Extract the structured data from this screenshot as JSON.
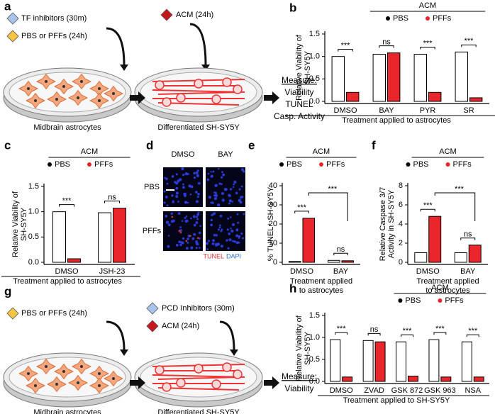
{
  "schematic_a": {
    "panel": "a",
    "input1": "TF inhibitors (30m)",
    "input2": "PBS or PFFs (24h)",
    "input3": "ACM (24h)",
    "dish1": "Midbrain astrocytes",
    "dish2": "Differentiated SH-SY5Y",
    "measure_title": "Measure:",
    "measures": [
      "Viability",
      "TUNEL",
      "Casp. Activity"
    ]
  },
  "image_d": {
    "panel": "d",
    "columns": [
      "DMSO",
      "BAY"
    ],
    "rows": [
      "PBS",
      "PFFs"
    ],
    "stain1": "TUNEL",
    "stain2": "DAPI"
  },
  "schematic_g": {
    "panel": "g",
    "input1": "PBS or PFFs (24h)",
    "input2": "PCD Inhibitors (30m)",
    "input3": "ACM (24h)",
    "dish1": "Midbrain astrocytes",
    "dish2": "Differentiated SH-SY5Y",
    "measure_title": "Measure:",
    "measures": [
      "Viability"
    ]
  },
  "charts": [
    {
      "type": "bar",
      "panel": "b",
      "group_label": "ACM",
      "ylabel": [
        "Relative Viability of",
        "SH-SY5Y"
      ],
      "xlabel": [
        "Treatment applied to astrocytes"
      ],
      "categories": [
        "DMSO",
        "BAY",
        "PYR",
        "SR"
      ],
      "series": [
        {
          "name": "PBS",
          "color": "#000000",
          "fill": "#ffffff",
          "values": [
            1.0,
            1.05,
            1.05,
            1.1
          ]
        },
        {
          "name": "PFFs",
          "color": "#e8262b",
          "fill": "#e8262b",
          "values": [
            0.2,
            1.08,
            0.2,
            0.08
          ]
        }
      ],
      "significance": [
        "***",
        "ns",
        "***",
        "***"
      ],
      "ylim": [
        0,
        1.5
      ],
      "yticks": [
        {
          "value": 0,
          "label": "0.0"
        },
        {
          "value": 0.5,
          "label": "0.5"
        },
        {
          "value": 1,
          "label": "1.0"
        },
        {
          "value": 1.5,
          "label": "1.5"
        }
      ]
    },
    {
      "type": "bar",
      "panel": "c",
      "group_label": "ACM",
      "ylabel": [
        "Relative Viability of",
        "SH-SY5Y"
      ],
      "xlabel": [
        "Treatment applied to astrocytes"
      ],
      "categories": [
        "DMSO",
        "JSH-23"
      ],
      "series": [
        {
          "name": "PBS",
          "color": "#000000",
          "fill": "#ffffff",
          "values": [
            1.0,
            0.98
          ]
        },
        {
          "name": "PFFs",
          "color": "#e8262b",
          "fill": "#e8262b",
          "values": [
            0.07,
            1.07
          ]
        }
      ],
      "significance": [
        "***",
        "ns"
      ],
      "ylim": [
        0,
        1.5
      ],
      "yticks": [
        {
          "value": 0,
          "label": "0.0"
        },
        {
          "value": 0.5,
          "label": "0.5"
        },
        {
          "value": 1,
          "label": "1.0"
        },
        {
          "value": 1.5,
          "label": "1.5"
        }
      ]
    },
    {
      "type": "bar",
      "panel": "e",
      "group_label": "ACM",
      "ylabel": [
        "% TUNEL⁺ SH-SY5Y"
      ],
      "xlabel": [
        "Treatment applied",
        "to astrocytes"
      ],
      "categories": [
        "DMSO",
        "BAY"
      ],
      "series": [
        {
          "name": "PBS",
          "color": "#000000",
          "fill": "#ffffff",
          "values": [
            0.5,
            1.0
          ]
        },
        {
          "name": "PFFs",
          "color": "#e8262b",
          "fill": "#e8262b",
          "values": [
            23,
            0.8
          ]
        }
      ],
      "significance": [
        "***",
        "ns"
      ],
      "bracket_label": "***",
      "ylim": [
        0,
        40
      ],
      "yticks": [
        0,
        10,
        20,
        30,
        40
      ]
    },
    {
      "type": "bar",
      "panel": "f",
      "group_label": "ACM",
      "ylabel": [
        "Relative Caspase 3/7",
        "Activity in SH-SY5Y"
      ],
      "xlabel": [
        "Treatment applied",
        "to astrocytes"
      ],
      "categories": [
        "DMSO",
        "BAY"
      ],
      "series": [
        {
          "name": "PBS",
          "color": "#000000",
          "fill": "#ffffff",
          "values": [
            1.0,
            1.0
          ]
        },
        {
          "name": "PFFs",
          "color": "#e8262b",
          "fill": "#e8262b",
          "values": [
            4.8,
            1.8
          ]
        }
      ],
      "significance": [
        "***",
        "ns"
      ],
      "bracket_label": "***",
      "ylim": [
        0,
        8
      ],
      "yticks": [
        0,
        2,
        4,
        6,
        8
      ]
    },
    {
      "type": "bar",
      "panel": "h",
      "group_label": "ACM",
      "ylabel": [
        "Relative Viability of",
        "SH-SY5Y"
      ],
      "xlabel": [
        "Treatment applied to SH-SY5Y"
      ],
      "categories": [
        "DMSO",
        "ZVAD",
        "GSK 872",
        "GSK 963",
        "NSA"
      ],
      "series": [
        {
          "name": "PBS",
          "color": "#000000",
          "fill": "#ffffff",
          "values": [
            0.95,
            0.93,
            0.9,
            0.95,
            0.9
          ]
        },
        {
          "name": "PFFs",
          "color": "#e8262b",
          "fill": "#e8262b",
          "values": [
            0.1,
            0.9,
            0.12,
            0.1,
            0.1
          ]
        }
      ],
      "significance": [
        "***",
        "ns",
        "***",
        "***",
        "***"
      ],
      "ylim": [
        0,
        1.5
      ],
      "yticks": [
        {
          "value": 0,
          "label": "0.0"
        },
        {
          "value": 0.5,
          "label": "0.5"
        },
        {
          "value": 1,
          "label": "1.0"
        },
        {
          "value": 1.5,
          "label": "1.5"
        }
      ]
    }
  ]
}
